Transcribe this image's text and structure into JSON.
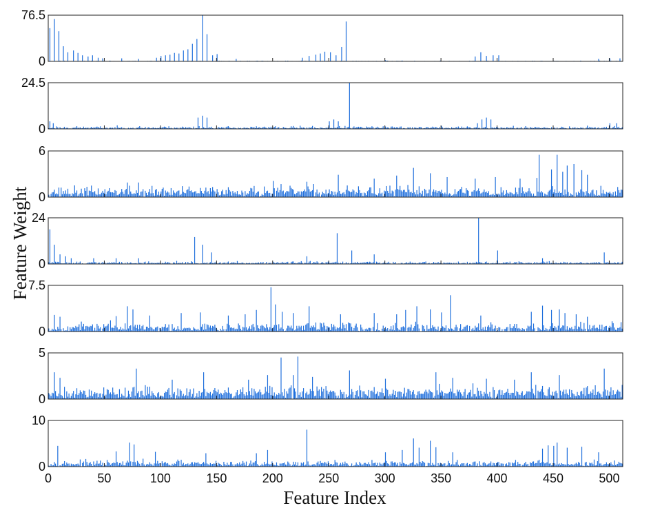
{
  "chart_data": {
    "type": "bar",
    "xlabel": "Feature Index",
    "ylabel": "Feature Weight",
    "x_range": [
      0,
      512
    ],
    "x_ticks": [
      0,
      50,
      100,
      150,
      200,
      250,
      300,
      350,
      400,
      450,
      500
    ],
    "color": "#1f6fdc",
    "panels": [
      {
        "ylim": [
          0,
          76.5
        ],
        "y_ticks": [
          "0",
          "76.5"
        ],
        "base": 0.5,
        "base_spread": 1.0,
        "seed": 11,
        "peaks": [
          [
            1,
            55
          ],
          [
            5,
            70
          ],
          [
            9,
            50
          ],
          [
            13,
            25
          ],
          [
            17,
            15
          ],
          [
            22,
            18
          ],
          [
            26,
            14
          ],
          [
            30,
            10
          ],
          [
            35,
            8
          ],
          [
            39,
            10
          ],
          [
            44,
            6
          ],
          [
            48,
            5
          ],
          [
            65,
            5
          ],
          [
            80,
            4
          ],
          [
            96,
            6
          ],
          [
            100,
            9
          ],
          [
            104,
            10
          ],
          [
            108,
            11
          ],
          [
            112,
            14
          ],
          [
            116,
            13
          ],
          [
            120,
            18
          ],
          [
            124,
            20
          ],
          [
            128,
            29
          ],
          [
            132,
            37
          ],
          [
            137,
            76.5
          ],
          [
            141,
            45
          ],
          [
            146,
            10
          ],
          [
            150,
            12
          ],
          [
            167,
            4
          ],
          [
            226,
            6
          ],
          [
            232,
            9
          ],
          [
            238,
            11
          ],
          [
            242,
            13
          ],
          [
            246,
            16
          ],
          [
            251,
            15
          ],
          [
            256,
            10
          ],
          [
            261,
            24
          ],
          [
            265,
            66
          ],
          [
            300,
            2
          ],
          [
            380,
            8
          ],
          [
            385,
            15
          ],
          [
            390,
            9
          ],
          [
            396,
            10
          ],
          [
            401,
            10
          ],
          [
            490,
            4
          ],
          [
            500,
            5
          ],
          [
            509,
            5
          ]
        ]
      },
      {
        "ylim": [
          0,
          24.5
        ],
        "y_ticks": [
          "0",
          "24.5"
        ],
        "base": 0.6,
        "base_spread": 1.4,
        "seed": 23,
        "peaks": [
          [
            1,
            4
          ],
          [
            4,
            3
          ],
          [
            133,
            6
          ],
          [
            137,
            7
          ],
          [
            141,
            6
          ],
          [
            250,
            4
          ],
          [
            254,
            5
          ],
          [
            258,
            4
          ],
          [
            268,
            24.5
          ],
          [
            382,
            3
          ],
          [
            386,
            5
          ],
          [
            390,
            6
          ],
          [
            394,
            5
          ],
          [
            500,
            3
          ],
          [
            506,
            3
          ]
        ]
      },
      {
        "ylim": [
          0,
          6
        ],
        "y_ticks": [
          "0",
          "6"
        ],
        "base": 0.8,
        "base_spread": 1.1,
        "seed": 37,
        "peaks": [
          [
            70,
            1.9
          ],
          [
            80,
            1.9
          ],
          [
            200,
            2.1
          ],
          [
            230,
            2.0
          ],
          [
            258,
            2.9
          ],
          [
            290,
            2.4
          ],
          [
            310,
            2.8
          ],
          [
            325,
            3.8
          ],
          [
            340,
            3.1
          ],
          [
            355,
            2.6
          ],
          [
            380,
            2.4
          ],
          [
            398,
            2.6
          ],
          [
            420,
            2.4
          ],
          [
            435,
            2.5
          ],
          [
            437,
            5.5
          ],
          [
            448,
            3.6
          ],
          [
            453,
            5.5
          ],
          [
            458,
            3.3
          ],
          [
            462,
            4.1
          ],
          [
            468,
            4.3
          ],
          [
            475,
            3.5
          ],
          [
            480,
            2.9
          ]
        ]
      },
      {
        "ylim": [
          0,
          24
        ],
        "y_ticks": [
          "0",
          "24"
        ],
        "base": 0.6,
        "base_spread": 1.2,
        "seed": 51,
        "peaks": [
          [
            1,
            18
          ],
          [
            5,
            10
          ],
          [
            10,
            5
          ],
          [
            15,
            4
          ],
          [
            20,
            3
          ],
          [
            40,
            3
          ],
          [
            60,
            3
          ],
          [
            80,
            3
          ],
          [
            130,
            14
          ],
          [
            137,
            10
          ],
          [
            145,
            6
          ],
          [
            230,
            4
          ],
          [
            257,
            16
          ],
          [
            270,
            7
          ],
          [
            290,
            5
          ],
          [
            383,
            24
          ],
          [
            400,
            7
          ],
          [
            440,
            3
          ],
          [
            495,
            6
          ]
        ]
      },
      {
        "ylim": [
          0,
          7.5
        ],
        "y_ticks": [
          "0",
          "7.5"
        ],
        "base": 0.7,
        "base_spread": 1.3,
        "seed": 67,
        "peaks": [
          [
            5,
            2.7
          ],
          [
            10,
            2.4
          ],
          [
            60,
            2.5
          ],
          [
            70,
            4.1
          ],
          [
            75,
            3.6
          ],
          [
            90,
            2.6
          ],
          [
            118,
            3.0
          ],
          [
            135,
            3.1
          ],
          [
            160,
            2.6
          ],
          [
            175,
            2.8
          ],
          [
            185,
            3.5
          ],
          [
            198,
            7.2
          ],
          [
            202,
            4.4
          ],
          [
            208,
            3.2
          ],
          [
            218,
            3.0
          ],
          [
            232,
            4.1
          ],
          [
            260,
            2.8
          ],
          [
            290,
            3.0
          ],
          [
            310,
            2.8
          ],
          [
            318,
            3.5
          ],
          [
            328,
            4.1
          ],
          [
            340,
            3.6
          ],
          [
            350,
            3.1
          ],
          [
            358,
            5.9
          ],
          [
            385,
            2.6
          ],
          [
            430,
            3.2
          ],
          [
            440,
            4.2
          ],
          [
            448,
            3.5
          ],
          [
            455,
            3.6
          ],
          [
            460,
            3.0
          ],
          [
            470,
            2.8
          ],
          [
            480,
            2.4
          ]
        ]
      },
      {
        "ylim": [
          0,
          5
        ],
        "y_ticks": [
          "0",
          "5"
        ],
        "base": 0.8,
        "base_spread": 1.1,
        "seed": 79,
        "peaks": [
          [
            5,
            2.9
          ],
          [
            10,
            2.3
          ],
          [
            78,
            3.3
          ],
          [
            110,
            2.1
          ],
          [
            138,
            2.9
          ],
          [
            178,
            2.1
          ],
          [
            195,
            2.6
          ],
          [
            207,
            4.5
          ],
          [
            218,
            2.6
          ],
          [
            222,
            4.6
          ],
          [
            235,
            2.4
          ],
          [
            268,
            3.1
          ],
          [
            300,
            2.2
          ],
          [
            345,
            2.9
          ],
          [
            360,
            2.3
          ],
          [
            390,
            2.2
          ],
          [
            415,
            2.1
          ],
          [
            430,
            2.9
          ],
          [
            455,
            2.6
          ],
          [
            495,
            3.3
          ]
        ]
      },
      {
        "ylim": [
          0,
          10
        ],
        "y_ticks": [
          "0",
          "10"
        ],
        "base": 0.7,
        "base_spread": 1.1,
        "seed": 97,
        "peaks": [
          [
            8,
            4.5
          ],
          [
            60,
            3.3
          ],
          [
            72,
            5.2
          ],
          [
            76,
            4.8
          ],
          [
            95,
            3.2
          ],
          [
            140,
            2.9
          ],
          [
            185,
            2.9
          ],
          [
            195,
            3.6
          ],
          [
            230,
            8.0
          ],
          [
            300,
            3.1
          ],
          [
            315,
            3.6
          ],
          [
            325,
            6.1
          ],
          [
            330,
            4.1
          ],
          [
            340,
            5.6
          ],
          [
            345,
            4.2
          ],
          [
            360,
            3.1
          ],
          [
            440,
            3.9
          ],
          [
            445,
            4.6
          ],
          [
            450,
            4.5
          ],
          [
            453,
            5.2
          ],
          [
            462,
            4.1
          ],
          [
            475,
            4.3
          ],
          [
            490,
            3.1
          ]
        ]
      }
    ]
  }
}
